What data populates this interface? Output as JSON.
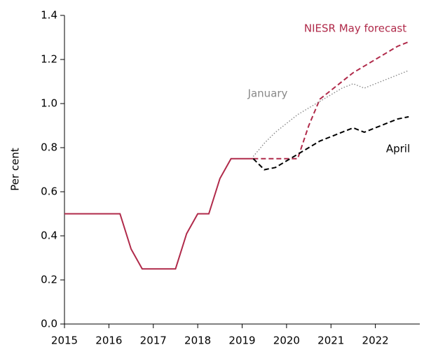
{
  "chart_data": {
    "type": "line",
    "y_label": "Per cent",
    "xlim": [
      2015,
      2023
    ],
    "xticks": [
      2015,
      2016,
      2017,
      2018,
      2019,
      2020,
      2021,
      2022
    ],
    "ylim": [
      0,
      1.4
    ],
    "yticks": [
      {
        "value": 0,
        "label": "0.0"
      },
      0.2,
      0.4,
      0.6,
      0.8,
      {
        "value": 1,
        "label": "1.0"
      },
      1.2,
      1.4
    ],
    "series": [
      {
        "color": "#b02a4a",
        "dash": "solid",
        "x": [
          2015,
          2016.25,
          2016.5,
          2016.75,
          2017.5,
          2017.75,
          2018,
          2018.25,
          2018.5,
          2018.75,
          2019.25
        ],
        "values": [
          0.5,
          0.5,
          0.34,
          0.25,
          0.25,
          0.41,
          0.5,
          0.5,
          0.66,
          0.75,
          0.75
        ]
      },
      {
        "name": "NIESR May forecast",
        "color": "#b02a4a",
        "dash": "dashed",
        "x": [
          2019.25,
          2019.5,
          2019.75,
          2020,
          2020.25,
          2020.5,
          2020.75,
          2021,
          2021.25,
          2021.5,
          2021.75,
          2022,
          2022.25,
          2022.5,
          2022.75
        ],
        "values": [
          0.75,
          0.75,
          0.75,
          0.75,
          0.75,
          0.9,
          1.02,
          1.06,
          1.1,
          1.14,
          1.17,
          1.2,
          1.23,
          1.26,
          1.28
        ]
      },
      {
        "name": "January",
        "color": "#888888",
        "dash": "dotted",
        "x": [
          2019.25,
          2019.5,
          2019.75,
          2020,
          2020.25,
          2020.5,
          2020.75,
          2021,
          2021.25,
          2021.5,
          2021.75,
          2022,
          2022.25,
          2022.5,
          2022.75
        ],
        "values": [
          0.76,
          0.82,
          0.87,
          0.91,
          0.95,
          0.98,
          1.01,
          1.04,
          1.07,
          1.09,
          1.07,
          1.09,
          1.11,
          1.13,
          1.15
        ]
      },
      {
        "name": "April",
        "color": "#000000",
        "dash": "dashed",
        "x": [
          2019.25,
          2019.5,
          2019.75,
          2020,
          2020.25,
          2020.5,
          2020.75,
          2021,
          2021.25,
          2021.5,
          2021.75,
          2022,
          2022.25,
          2022.5,
          2022.75
        ],
        "values": [
          0.75,
          0.7,
          0.71,
          0.74,
          0.77,
          0.8,
          0.83,
          0.85,
          0.87,
          0.89,
          0.87,
          0.89,
          0.91,
          0.93,
          0.94
        ]
      }
    ]
  }
}
